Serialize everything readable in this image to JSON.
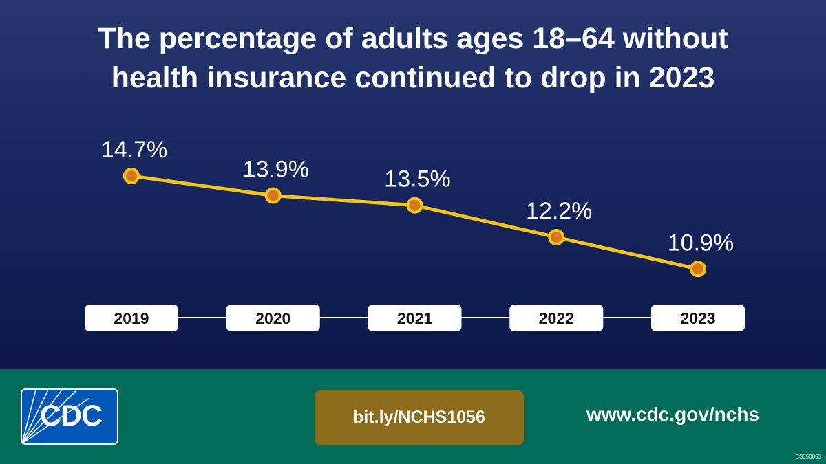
{
  "title": {
    "line1": "The percentage of adults ages 18–64 without",
    "line2": "health insurance continued to drop in 2023"
  },
  "colors": {
    "background": "#172760",
    "line": "#f5c518",
    "marker": "#d9771f",
    "footer": "#016d58",
    "link_pill": "#8d6c1c"
  },
  "chart_data": {
    "type": "line",
    "title": "The percentage of adults ages 18–64 without health insurance continued to drop in 2023",
    "xlabel": "",
    "ylabel": "",
    "categories": [
      "2019",
      "2020",
      "2021",
      "2022",
      "2023"
    ],
    "series": [
      {
        "values": [
          14.7,
          13.9,
          13.5,
          12.2,
          10.9
        ],
        "labels": [
          "14.7%",
          "13.9%",
          "13.5%",
          "12.2%",
          "10.9%"
        ]
      }
    ],
    "grid": false,
    "legend": "none"
  },
  "footer": {
    "logo_text": "CDC",
    "link_label": "bit.ly/NCHS1056",
    "site_url": "www.cdc.gov/nchs",
    "code": "CS350053"
  }
}
